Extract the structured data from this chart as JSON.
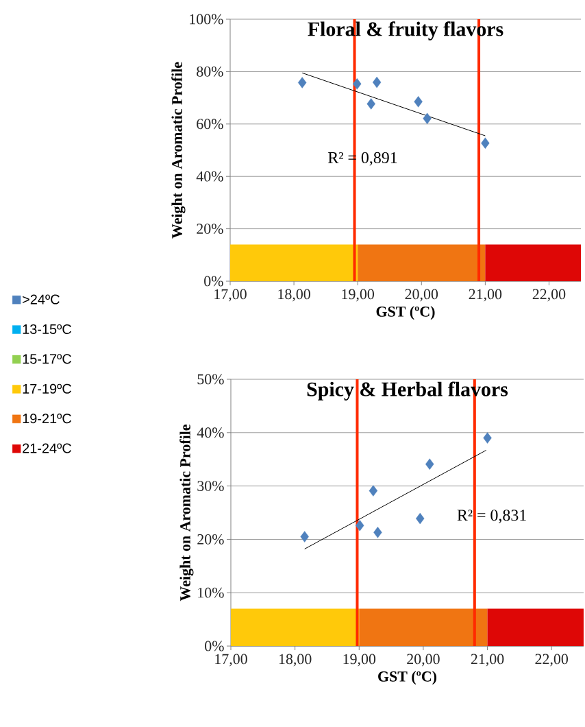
{
  "chart_data": [
    {
      "type": "scatter",
      "title": "Floral & fruity flavors",
      "xlabel": "GST (ºC)",
      "ylabel": "Weight on Aromatic Profile",
      "xlim": [
        17,
        22.5
      ],
      "ylim": [
        0,
        100
      ],
      "xticks": [
        {
          "value": 17,
          "label": "17,00"
        },
        {
          "value": 18,
          "label": "18,00"
        },
        {
          "value": 19,
          "label": "19,00"
        },
        {
          "value": 20,
          "label": "20,00"
        },
        {
          "value": 21,
          "label": "21,00"
        },
        {
          "value": 22,
          "label": "22,00"
        }
      ],
      "yticks": [
        {
          "value": 0,
          "label": "0%"
        },
        {
          "value": 20,
          "label": "20%"
        },
        {
          "value": 40,
          "label": "40%"
        },
        {
          "value": 60,
          "label": "60%"
        },
        {
          "value": 80,
          "label": "80%"
        },
        {
          "value": 100,
          "label": "100%"
        }
      ],
      "grid": "y",
      "legend": "left",
      "marker": "diamond",
      "series": [
        {
          "name": ">24ºC",
          "color": "#4f81bd",
          "x": [
            18.13,
            18.99,
            19.3,
            19.21,
            19.95,
            20.09,
            21.0
          ],
          "values": [
            75.8,
            75.3,
            75.9,
            67.7,
            68.5,
            62.1,
            52.7
          ]
        },
        {
          "type": "line",
          "color": "#000000",
          "marker": "none",
          "x": [
            18.13,
            21.0
          ],
          "values": [
            79.5,
            55.5
          ]
        },
        {
          "name": "13-15ºC",
          "color": "#00b0f0"
        },
        {
          "name": "15-17ºC",
          "color": "#92d050"
        }
      ],
      "bands": [
        {
          "axis": "x",
          "from": 17,
          "to": 19,
          "label": "17-19ºC",
          "color": "#ffc90a"
        },
        {
          "axis": "x",
          "from": 19,
          "to": 21,
          "label": "19-21ºC",
          "color": "#f07512"
        },
        {
          "axis": "x",
          "from": 21,
          "to": 22.5,
          "label": "21-24ºC",
          "color": "#de0706"
        }
      ],
      "ref_lines": [
        {
          "axis": "x",
          "value": 18.95,
          "color": "#ff2a00"
        },
        {
          "axis": "x",
          "value": 20.9,
          "color": "#ff2a00"
        }
      ],
      "annotations": [
        "R² = 0,891"
      ]
    },
    {
      "type": "scatter",
      "title": "Spicy & Herbal flavors",
      "xlabel": "GST (ºC)",
      "ylabel": "Weight on Aromatic Profile",
      "xlim": [
        17,
        22.5
      ],
      "ylim": [
        0,
        50
      ],
      "xticks": [
        {
          "value": 17,
          "label": "17,00"
        },
        {
          "value": 18,
          "label": "18,00"
        },
        {
          "value": 19,
          "label": "19,00"
        },
        {
          "value": 20,
          "label": "20,00"
        },
        {
          "value": 21,
          "label": "21,00"
        },
        {
          "value": 22,
          "label": "22,00"
        }
      ],
      "yticks": [
        {
          "value": 0,
          "label": "0%"
        },
        {
          "value": 10,
          "label": "10%"
        },
        {
          "value": 20,
          "label": "20%"
        },
        {
          "value": 30,
          "label": "30%"
        },
        {
          "value": 40,
          "label": "40%"
        },
        {
          "value": 50,
          "label": "50%"
        }
      ],
      "grid": "y",
      "marker": "diamond",
      "series": [
        {
          "color": "#4f81bd",
          "x": [
            18.15,
            19.01,
            19.22,
            19.29,
            19.95,
            20.1,
            21.0
          ],
          "values": [
            20.5,
            22.6,
            29.1,
            21.3,
            23.9,
            34.1,
            39.0
          ]
        },
        {
          "type": "line",
          "color": "#000000",
          "marker": "none",
          "x": [
            18.15,
            20.98
          ],
          "values": [
            18.2,
            36.7
          ]
        }
      ],
      "bands": [
        {
          "axis": "x",
          "from": 17,
          "to": 19,
          "color": "#ffc90a"
        },
        {
          "axis": "x",
          "from": 19,
          "to": 21,
          "color": "#f07512"
        },
        {
          "axis": "x",
          "from": 21,
          "to": 22.5,
          "color": "#de0706"
        }
      ],
      "ref_lines": [
        {
          "axis": "x",
          "value": 18.97,
          "color": "#ff2a00"
        },
        {
          "axis": "x",
          "value": 20.8,
          "color": "#ff2a00"
        }
      ],
      "annotations": [
        "R² = 0,831"
      ]
    }
  ]
}
